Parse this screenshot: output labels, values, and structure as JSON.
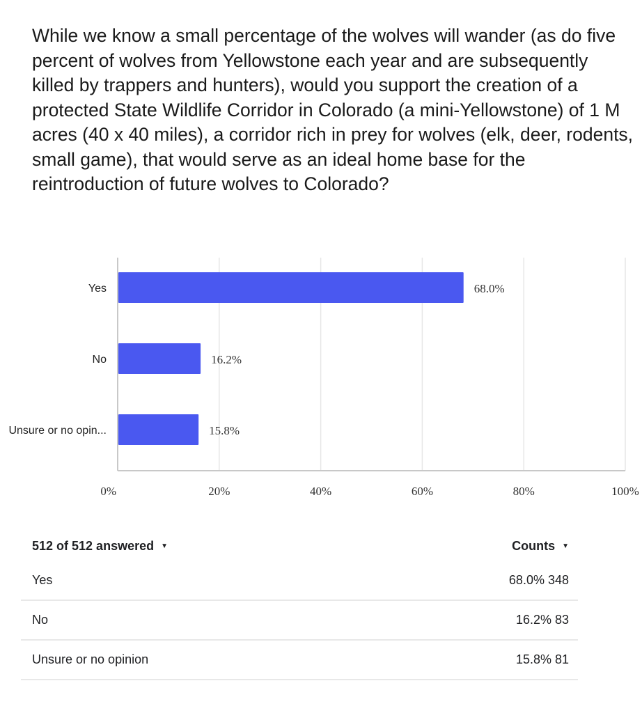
{
  "question": "While we know a small percentage of the wolves will wander (as do five percent of wolves from Yellowstone each year and are subsequently killed by trappers and hunters), would you support the creation of a protected State Wildlife Corridor in Colorado (a mini-Yellowstone) of 1 M acres (40 x 40 miles), a corridor rich in prey for wolves (elk, deer, rodents, small game), that would serve as an ideal home base for the reintroduction of future wolves to Colorado?",
  "chart_data": {
    "type": "bar",
    "orientation": "horizontal",
    "categories": [
      "Yes",
      "No",
      "Unsure or no opin..."
    ],
    "values": [
      68.0,
      16.2,
      15.8
    ],
    "data_labels": [
      "68.0%",
      "16.2%",
      "15.8%"
    ],
    "xlim": [
      0,
      100
    ],
    "xticks": [
      "0%",
      "20%",
      "40%",
      "60%",
      "80%",
      "100%"
    ],
    "grid": true,
    "bar_color": "#4a58f0"
  },
  "table": {
    "answered_label": "512 of 512 answered",
    "counts_label": "Counts",
    "rows": [
      {
        "label": "Yes",
        "value": "68.0% 348"
      },
      {
        "label": "No",
        "value": "16.2% 83"
      },
      {
        "label": "Unsure or no opinion",
        "value": "15.8% 81"
      }
    ]
  }
}
